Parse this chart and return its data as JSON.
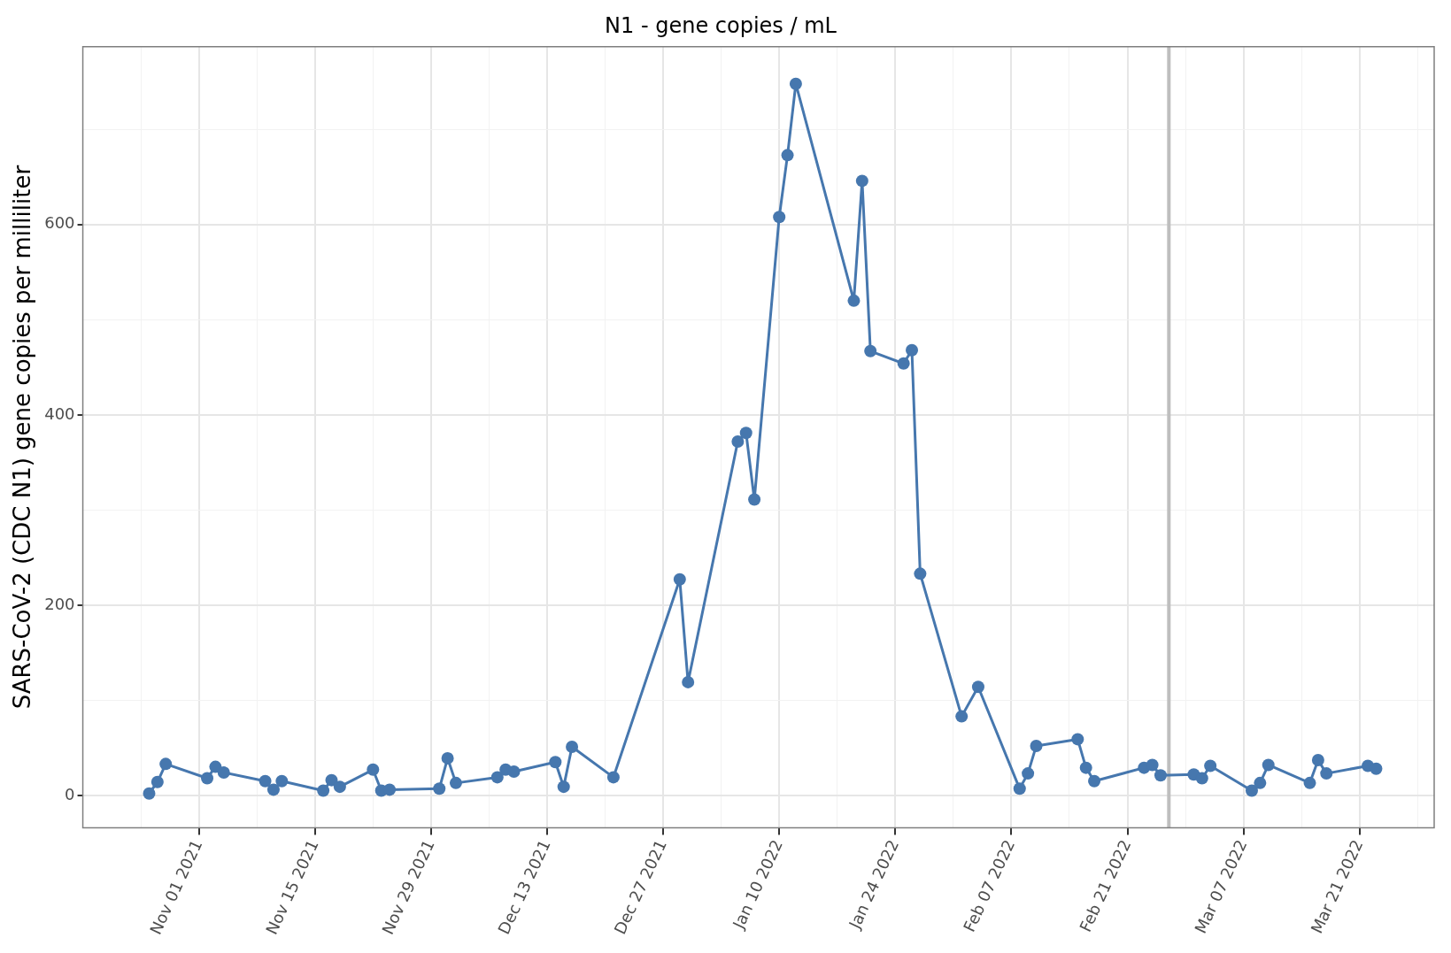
{
  "chart_data": {
    "type": "line",
    "title": "N1 - gene copies / mL",
    "ylabel": "SARS-CoV-2 (CDC N1) gene copies per milliliter",
    "series": [
      {
        "color": "#4677ae",
        "x": [
          "2021-10-26",
          "2021-10-27",
          "2021-10-28",
          "2021-11-02",
          "2021-11-03",
          "2021-11-04",
          "2021-11-09",
          "2021-11-10",
          "2021-11-11",
          "2021-11-16",
          "2021-11-17",
          "2021-11-18",
          "2021-11-22",
          "2021-11-23",
          "2021-11-24",
          "2021-11-30",
          "2021-12-01",
          "2021-12-02",
          "2021-12-07",
          "2021-12-08",
          "2021-12-09",
          "2021-12-14",
          "2021-12-15",
          "2021-12-16",
          "2021-12-21",
          "2021-12-29",
          "2021-12-30",
          "2022-01-05",
          "2022-01-06",
          "2022-01-07",
          "2022-01-10",
          "2022-01-11",
          "2022-01-12",
          "2022-01-19",
          "2022-01-20",
          "2022-01-21",
          "2022-01-25",
          "2022-01-26",
          "2022-01-27",
          "2022-02-01",
          "2022-02-03",
          "2022-02-08",
          "2022-02-09",
          "2022-02-10",
          "2022-02-15",
          "2022-02-16",
          "2022-02-17",
          "2022-02-23",
          "2022-02-24",
          "2022-02-25",
          "2022-03-01",
          "2022-03-02",
          "2022-03-03",
          "2022-03-08",
          "2022-03-09",
          "2022-03-10",
          "2022-03-15",
          "2022-03-16",
          "2022-03-17",
          "2022-03-22",
          "2022-03-23"
        ],
        "values": [
          2,
          14,
          33,
          18,
          30,
          24,
          15,
          6,
          15,
          5,
          16,
          9,
          27,
          5,
          6,
          7,
          39,
          13,
          19,
          27,
          25,
          35,
          9,
          51,
          19,
          227,
          119,
          372,
          381,
          311,
          608,
          673,
          748,
          520,
          646,
          467,
          454,
          468,
          233,
          83,
          114,
          7,
          23,
          52,
          59,
          29,
          15,
          29,
          32,
          21,
          22,
          18,
          31,
          5,
          13,
          32,
          13,
          37,
          23,
          31,
          28
        ]
      }
    ],
    "xlim": [
      "2021-10-18",
      "2022-03-30"
    ],
    "xticks": [
      {
        "value": "2021-10-25",
        "label": null
      },
      {
        "value": "2021-11-01",
        "label": "Nov 01 2021"
      },
      {
        "value": "2021-11-08",
        "label": null
      },
      {
        "value": "2021-11-15",
        "label": "Nov 15 2021"
      },
      {
        "value": "2021-11-22",
        "label": null
      },
      {
        "value": "2021-11-29",
        "label": "Nov 29 2021"
      },
      {
        "value": "2021-12-06",
        "label": null
      },
      {
        "value": "2021-12-13",
        "label": "Dec 13 2021"
      },
      {
        "value": "2021-12-20",
        "label": null
      },
      {
        "value": "2021-12-27",
        "label": "Dec 27 2021"
      },
      {
        "value": "2022-01-03",
        "label": null
      },
      {
        "value": "2022-01-10",
        "label": "Jan 10 2022"
      },
      {
        "value": "2022-01-17",
        "label": null
      },
      {
        "value": "2022-01-24",
        "label": "Jan 24 2022"
      },
      {
        "value": "2022-01-31",
        "label": null
      },
      {
        "value": "2022-02-07",
        "label": "Feb 07 2022"
      },
      {
        "value": "2022-02-14",
        "label": null
      },
      {
        "value": "2022-02-21",
        "label": "Feb 21 2022"
      },
      {
        "value": "2022-02-28",
        "label": null
      },
      {
        "value": "2022-03-07",
        "label": "Mar 07 2022"
      },
      {
        "value": "2022-03-14",
        "label": null
      },
      {
        "value": "2022-03-21",
        "label": "Mar 21 2022"
      },
      {
        "value": "2022-03-28",
        "label": null
      }
    ],
    "ylim": [
      -34,
      787
    ],
    "yticks": [
      0,
      {
        "value": 100,
        "label": null
      },
      200,
      {
        "value": 300,
        "label": null
      },
      400,
      {
        "value": 500,
        "label": null
      },
      600,
      {
        "value": 700,
        "label": null
      }
    ],
    "ref_lines": [
      {
        "axis": "x",
        "value": "2022-02-26",
        "color": "#bebebe"
      }
    ],
    "grid": true,
    "legend": false,
    "marker": "circle",
    "line_style": "solid"
  }
}
